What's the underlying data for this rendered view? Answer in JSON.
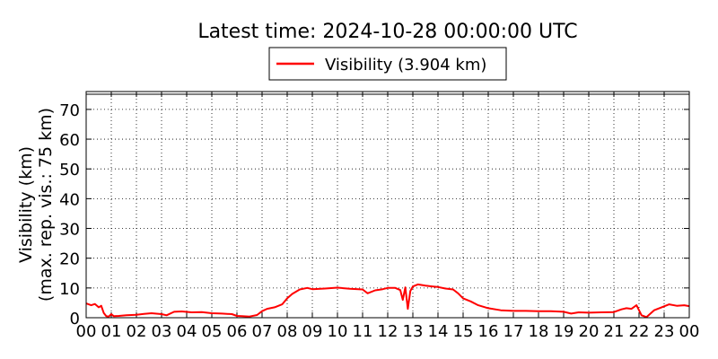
{
  "chart_data": {
    "type": "line",
    "title": "Latest time: 2024-10-28 00:00:00 UTC",
    "ylabel": "Visibility (km)",
    "ylabel2": "(max. rep. vis.: 75 km)",
    "xlabel": "",
    "xlim": [
      0,
      24
    ],
    "ylim": [
      0,
      76
    ],
    "xtick_labels": [
      "00",
      "01",
      "02",
      "03",
      "04",
      "05",
      "06",
      "07",
      "08",
      "09",
      "10",
      "11",
      "12",
      "13",
      "14",
      "15",
      "16",
      "17",
      "18",
      "19",
      "20",
      "21",
      "22",
      "23",
      "00"
    ],
    "ytick_values": [
      0,
      10,
      20,
      30,
      40,
      50,
      60,
      70
    ],
    "grid": true,
    "legend_position": "top-center",
    "series": [
      {
        "name": "Visibility (3.904 km)",
        "color": "#ff0000",
        "x": [
          0,
          0.2,
          0.35,
          0.5,
          0.6,
          0.7,
          0.8,
          0.9,
          1.0,
          1.1,
          1.3,
          1.6,
          2.0,
          2.3,
          2.6,
          3.0,
          3.2,
          3.5,
          3.8,
          4.2,
          4.6,
          5.0,
          5.4,
          5.8,
          6.0,
          6.2,
          6.5,
          6.8,
          7.0,
          7.2,
          7.5,
          7.8,
          8.0,
          8.2,
          8.5,
          8.8,
          9.0,
          9.5,
          10.0,
          10.5,
          11.0,
          11.2,
          11.5,
          11.8,
          12.0,
          12.3,
          12.5,
          12.6,
          12.7,
          12.8,
          12.9,
          13.0,
          13.2,
          13.5,
          13.8,
          14.0,
          14.3,
          14.6,
          14.8,
          15.0,
          15.3,
          15.6,
          16.0,
          16.5,
          17.0,
          17.5,
          18.0,
          18.5,
          19.0,
          19.3,
          19.6,
          20.0,
          20.5,
          21.0,
          21.3,
          21.5,
          21.7,
          21.9,
          22.1,
          22.3,
          22.6,
          22.9,
          23.2,
          23.5,
          23.8,
          24.0
        ],
        "y": [
          4.8,
          4.2,
          4.6,
          3.5,
          4.0,
          1.6,
          0.5,
          0.4,
          1.2,
          0.5,
          0.6,
          0.8,
          1.0,
          1.3,
          1.5,
          1.2,
          0.8,
          2.0,
          2.1,
          1.8,
          1.9,
          1.5,
          1.4,
          1.2,
          0.6,
          0.5,
          0.4,
          0.9,
          2.2,
          3.0,
          3.5,
          4.5,
          6.5,
          8.0,
          9.5,
          10.0,
          9.6,
          9.8,
          10.1,
          9.7,
          9.5,
          8.2,
          9.2,
          9.6,
          10.0,
          10.0,
          9.3,
          6.0,
          10.2,
          3.0,
          9.0,
          10.5,
          11.2,
          10.8,
          10.5,
          10.3,
          9.8,
          9.5,
          8.2,
          6.5,
          5.5,
          4.2,
          3.2,
          2.5,
          2.3,
          2.3,
          2.2,
          2.2,
          2.0,
          1.4,
          1.8,
          1.7,
          1.8,
          1.9,
          2.8,
          3.2,
          3.0,
          4.2,
          0.8,
          0.2,
          2.5,
          3.5,
          4.5,
          4.0,
          4.2,
          3.9
        ]
      }
    ]
  }
}
